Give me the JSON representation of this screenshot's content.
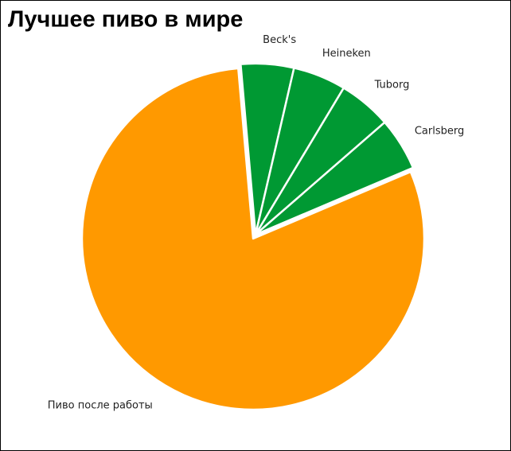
{
  "chart_data": {
    "type": "pie",
    "title": "Лучшее пиво в мире",
    "categories": [
      "Beck's",
      "Heineken",
      "Tuborg",
      "Carlsberg",
      "Пиво после работы"
    ],
    "values": [
      5,
      5,
      5,
      5,
      80
    ],
    "colors": [
      "#009933",
      "#009933",
      "#009933",
      "#009933",
      "#ff9900"
    ],
    "explode": [
      true,
      true,
      true,
      true,
      false
    ]
  }
}
